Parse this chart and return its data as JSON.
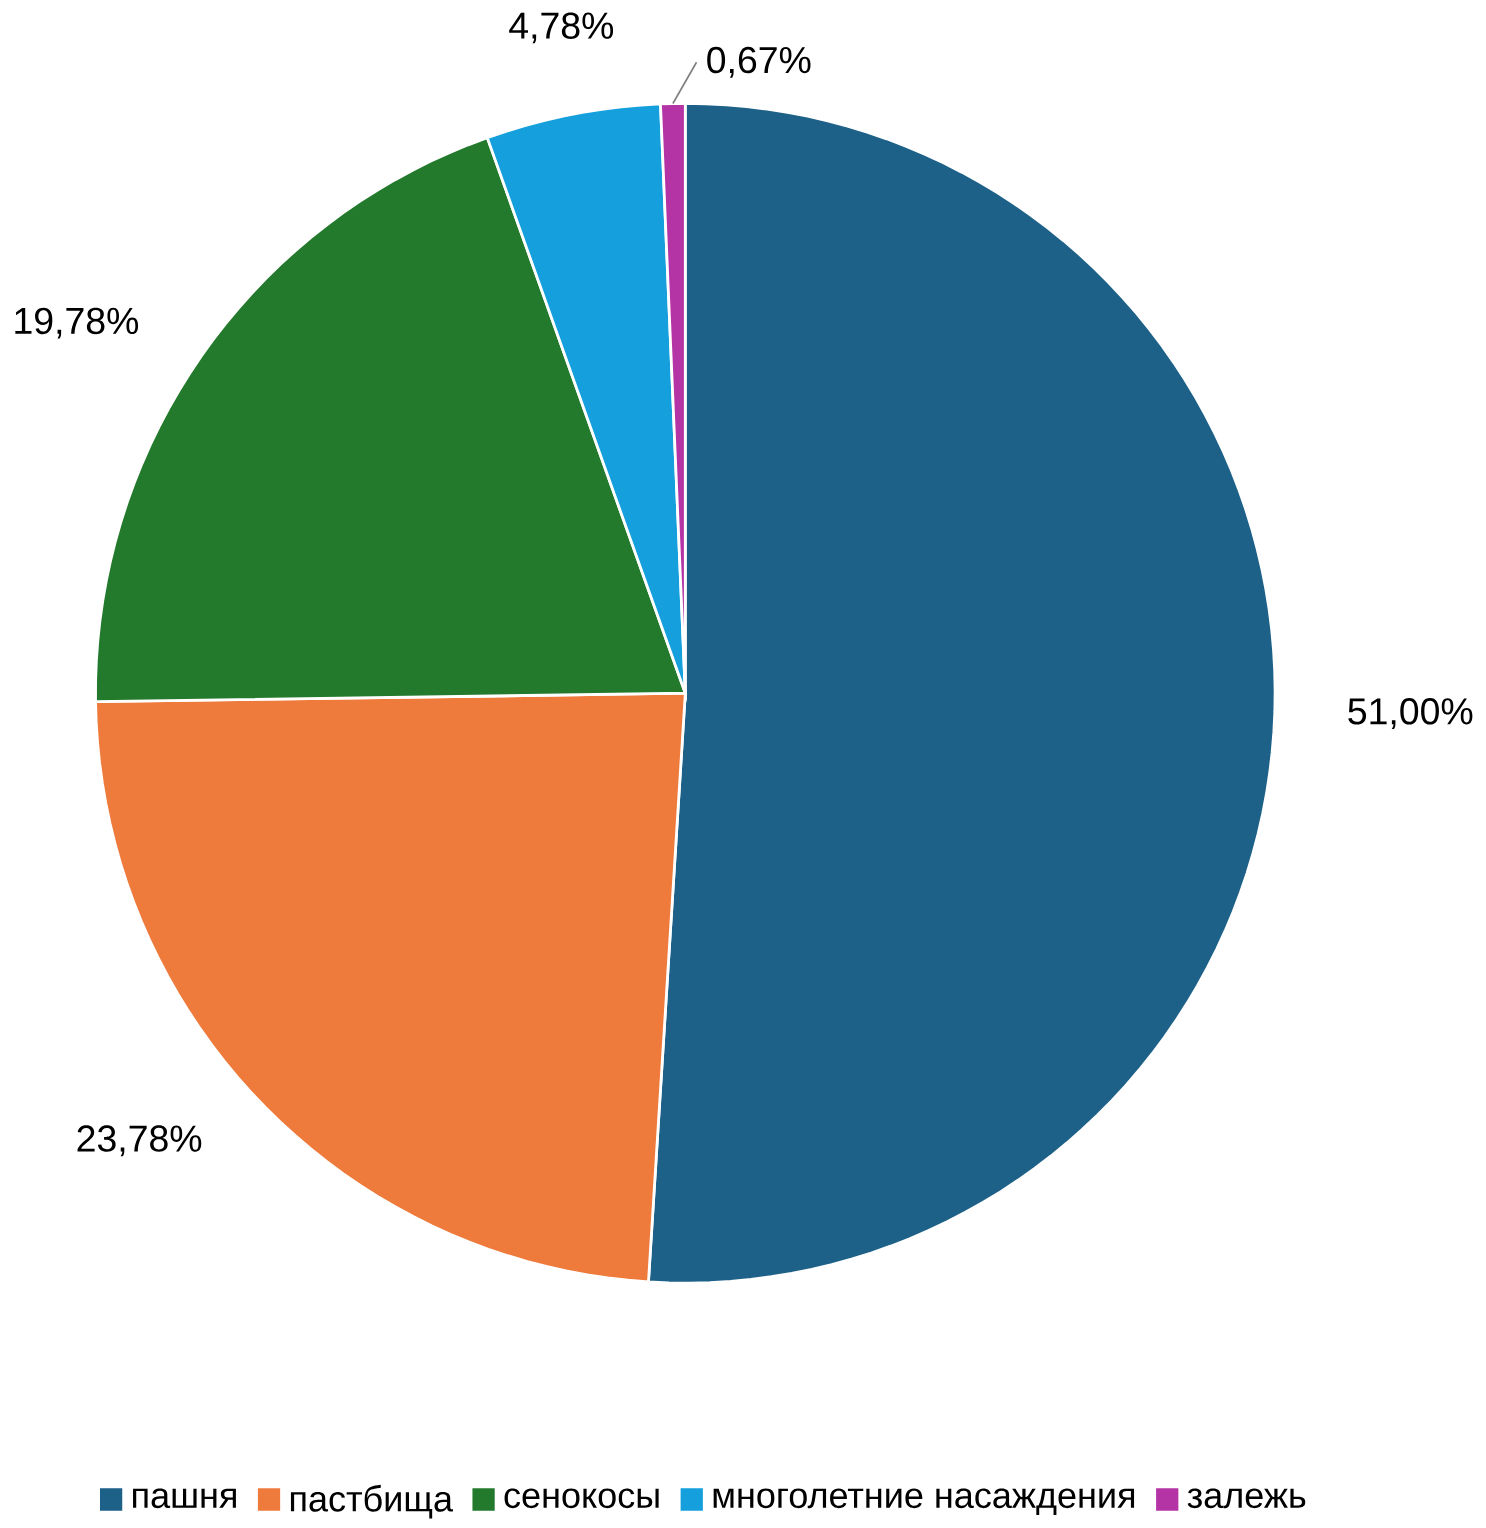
{
  "chart_data": {
    "type": "pie",
    "categories": [
      "пашня",
      "пастбища",
      "сенокосы",
      "многолетние насаждения",
      "залежь"
    ],
    "values": [
      51.0,
      23.78,
      19.78,
      4.78,
      0.67
    ],
    "colors": [
      "#1d6088",
      "#ee7a3c",
      "#237a2c",
      "#159fdc",
      "#b433a5"
    ],
    "value_labels": [
      "51,00%",
      "23,78%",
      "19,78%",
      "4,78%",
      "0,67%"
    ],
    "legend": "bottom"
  }
}
